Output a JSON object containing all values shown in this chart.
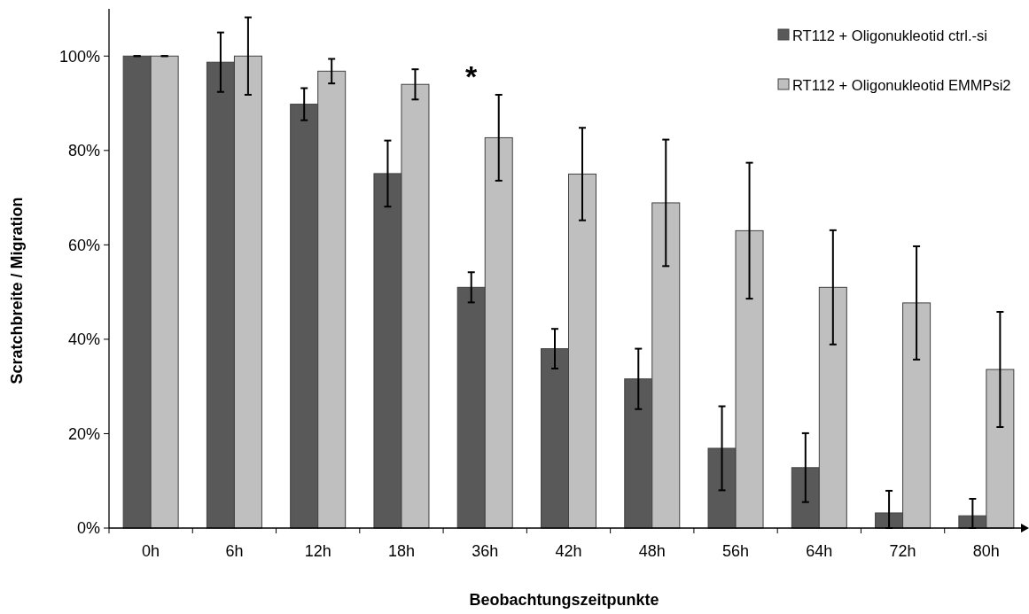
{
  "chart_data": {
    "type": "bar",
    "xlabel": "Beobachtungszeitpunkte",
    "ylabel": "Scratchbreite / Migration",
    "categories": [
      "0h",
      "6h",
      "12h",
      "18h",
      "36h",
      "42h",
      "48h",
      "56h",
      "64h",
      "72h",
      "80h"
    ],
    "series": [
      {
        "name": "RT112 + Oligonukleotid ctrl.-si",
        "color": "#595959",
        "values": [
          100,
          98.7,
          89.8,
          75.1,
          51,
          38,
          31.6,
          16.9,
          12.8,
          3.2,
          2.6
        ],
        "errors": [
          0,
          6.3,
          3.4,
          7,
          3.2,
          4.2,
          6.4,
          8.9,
          7.3,
          [
            0,
            7.9
          ],
          [
            0,
            6.2
          ]
        ]
      },
      {
        "name": "RT112 + Oligonukleotid EMMPsi2",
        "color": "#bfbfbf",
        "values": [
          100,
          100,
          96.8,
          94,
          82.7,
          75,
          68.9,
          63,
          51,
          47.7,
          33.6
        ],
        "errors": [
          0,
          8.2,
          2.6,
          3.2,
          9.1,
          9.8,
          13.4,
          14.4,
          12.1,
          12,
          12.2
        ]
      }
    ],
    "ylim": [
      0,
      110
    ],
    "yticks": [
      {
        "value": 0,
        "label": "0%"
      },
      {
        "value": 20,
        "label": "20%"
      },
      {
        "value": 40,
        "label": "40%"
      },
      {
        "value": 60,
        "label": "60%"
      },
      {
        "value": 80,
        "label": "80%"
      },
      {
        "value": 100,
        "label": "100%"
      }
    ],
    "annotations": [
      "*"
    ],
    "legend": "top right",
    "grid": false
  }
}
